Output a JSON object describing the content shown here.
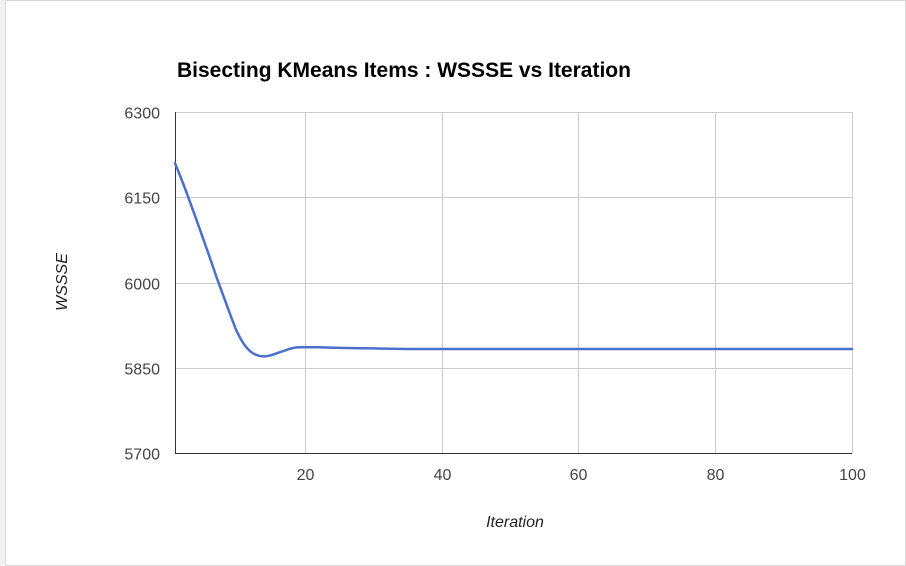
{
  "chart_data": {
    "type": "line",
    "title": "Bisecting KMeans Items : WSSSE vs Iteration",
    "xlabel": "Iteration",
    "ylabel": "WSSSE",
    "xlim": [
      1,
      100
    ],
    "ylim": [
      5700,
      6300
    ],
    "xticks": [
      20,
      40,
      60,
      80,
      100
    ],
    "yticks": [
      5700,
      5850,
      6000,
      6150,
      6300
    ],
    "grid": true,
    "legend": "none",
    "series": [
      {
        "color": "#4a6fcc",
        "x": [
          1,
          2,
          3,
          4,
          5,
          6,
          7,
          8,
          9,
          10,
          11,
          12,
          13,
          14,
          15,
          16,
          17,
          18,
          19,
          20,
          22,
          25,
          30,
          35,
          40,
          50,
          60,
          70,
          80,
          90,
          100
        ],
        "values": [
          6210,
          6180,
          6148,
          6115,
          6081,
          6047,
          6012,
          5979,
          5946,
          5915,
          5893,
          5879,
          5872,
          5870,
          5872,
          5876,
          5880,
          5884,
          5886,
          5886,
          5886,
          5885,
          5884,
          5883,
          5883,
          5883,
          5883,
          5883,
          5883,
          5883,
          5883
        ]
      }
    ]
  },
  "colors": {
    "line": "#4a6fcc",
    "grid": "#cccccc",
    "axis": "#333333"
  }
}
